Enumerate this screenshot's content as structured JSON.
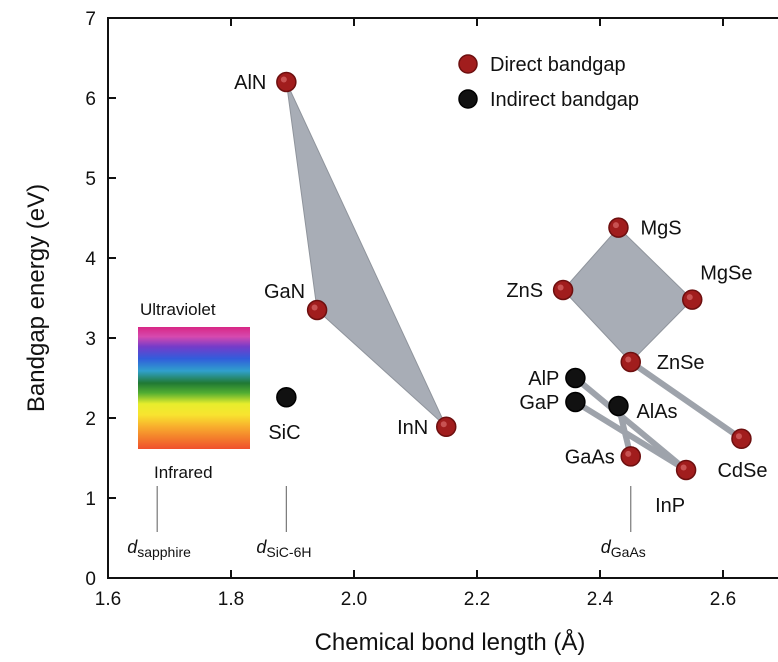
{
  "chart_data": {
    "type": "scatter",
    "xlabel": "Chemical bond length (Å)",
    "ylabel": "Bandgap energy (eV)",
    "xlim": [
      1.6,
      2.68
    ],
    "ylim": [
      0,
      7
    ],
    "x_ticks": [
      "1.6",
      "1.8",
      "2.0",
      "2.2",
      "2.4",
      "2.6"
    ],
    "y_ticks": [
      "0",
      "1",
      "2",
      "3",
      "4",
      "5",
      "6",
      "7"
    ],
    "grid": false,
    "legend_position": "top-right",
    "series": [
      {
        "name": "Direct bandgap",
        "color": "#a11d1d",
        "points": [
          {
            "label": "AlN",
            "x": 1.89,
            "y": 6.2
          },
          {
            "label": "GaN",
            "x": 1.94,
            "y": 3.35
          },
          {
            "label": "InN",
            "x": 2.15,
            "y": 1.89
          },
          {
            "label": "MgS",
            "x": 2.43,
            "y": 4.38
          },
          {
            "label": "ZnS",
            "x": 2.34,
            "y": 3.6
          },
          {
            "label": "MgSe",
            "x": 2.55,
            "y": 3.48
          },
          {
            "label": "ZnSe",
            "x": 2.45,
            "y": 2.7
          },
          {
            "label": "CdSe",
            "x": 2.63,
            "y": 1.74
          },
          {
            "label": "GaAs",
            "x": 2.45,
            "y": 1.52
          },
          {
            "label": "InP",
            "x": 2.54,
            "y": 1.35
          }
        ]
      },
      {
        "name": "Indirect bandgap",
        "color": "#111111",
        "points": [
          {
            "label": "SiC",
            "x": 1.89,
            "y": 2.26
          },
          {
            "label": "AlP",
            "x": 2.36,
            "y": 2.5
          },
          {
            "label": "GaP",
            "x": 2.36,
            "y": 2.2
          },
          {
            "label": "AlAs",
            "x": 2.43,
            "y": 2.15
          }
        ]
      }
    ],
    "regions": [
      {
        "vertices": [
          "AlN",
          "GaN",
          "InN"
        ],
        "color": "#a8adb6"
      },
      {
        "vertices": [
          "MgS",
          "MgSe",
          "ZnSe",
          "ZnS"
        ],
        "color": "#a8adb6"
      }
    ],
    "tie_lines": [
      [
        "ZnSe",
        "CdSe"
      ],
      [
        "AlP",
        "InP"
      ],
      [
        "GaP",
        "InP"
      ],
      [
        "AlAs",
        "GaAs"
      ]
    ],
    "reference_lines": [
      {
        "x": 1.68,
        "label": "d",
        "subscript": "sapphire"
      },
      {
        "x": 1.89,
        "label": "d",
        "subscript": "SiC-6H"
      },
      {
        "x": 2.45,
        "label": "d",
        "subscript": "GaAs"
      }
    ],
    "spectrum_labels": {
      "top": "Ultraviolet",
      "bottom": "Infrared"
    }
  }
}
